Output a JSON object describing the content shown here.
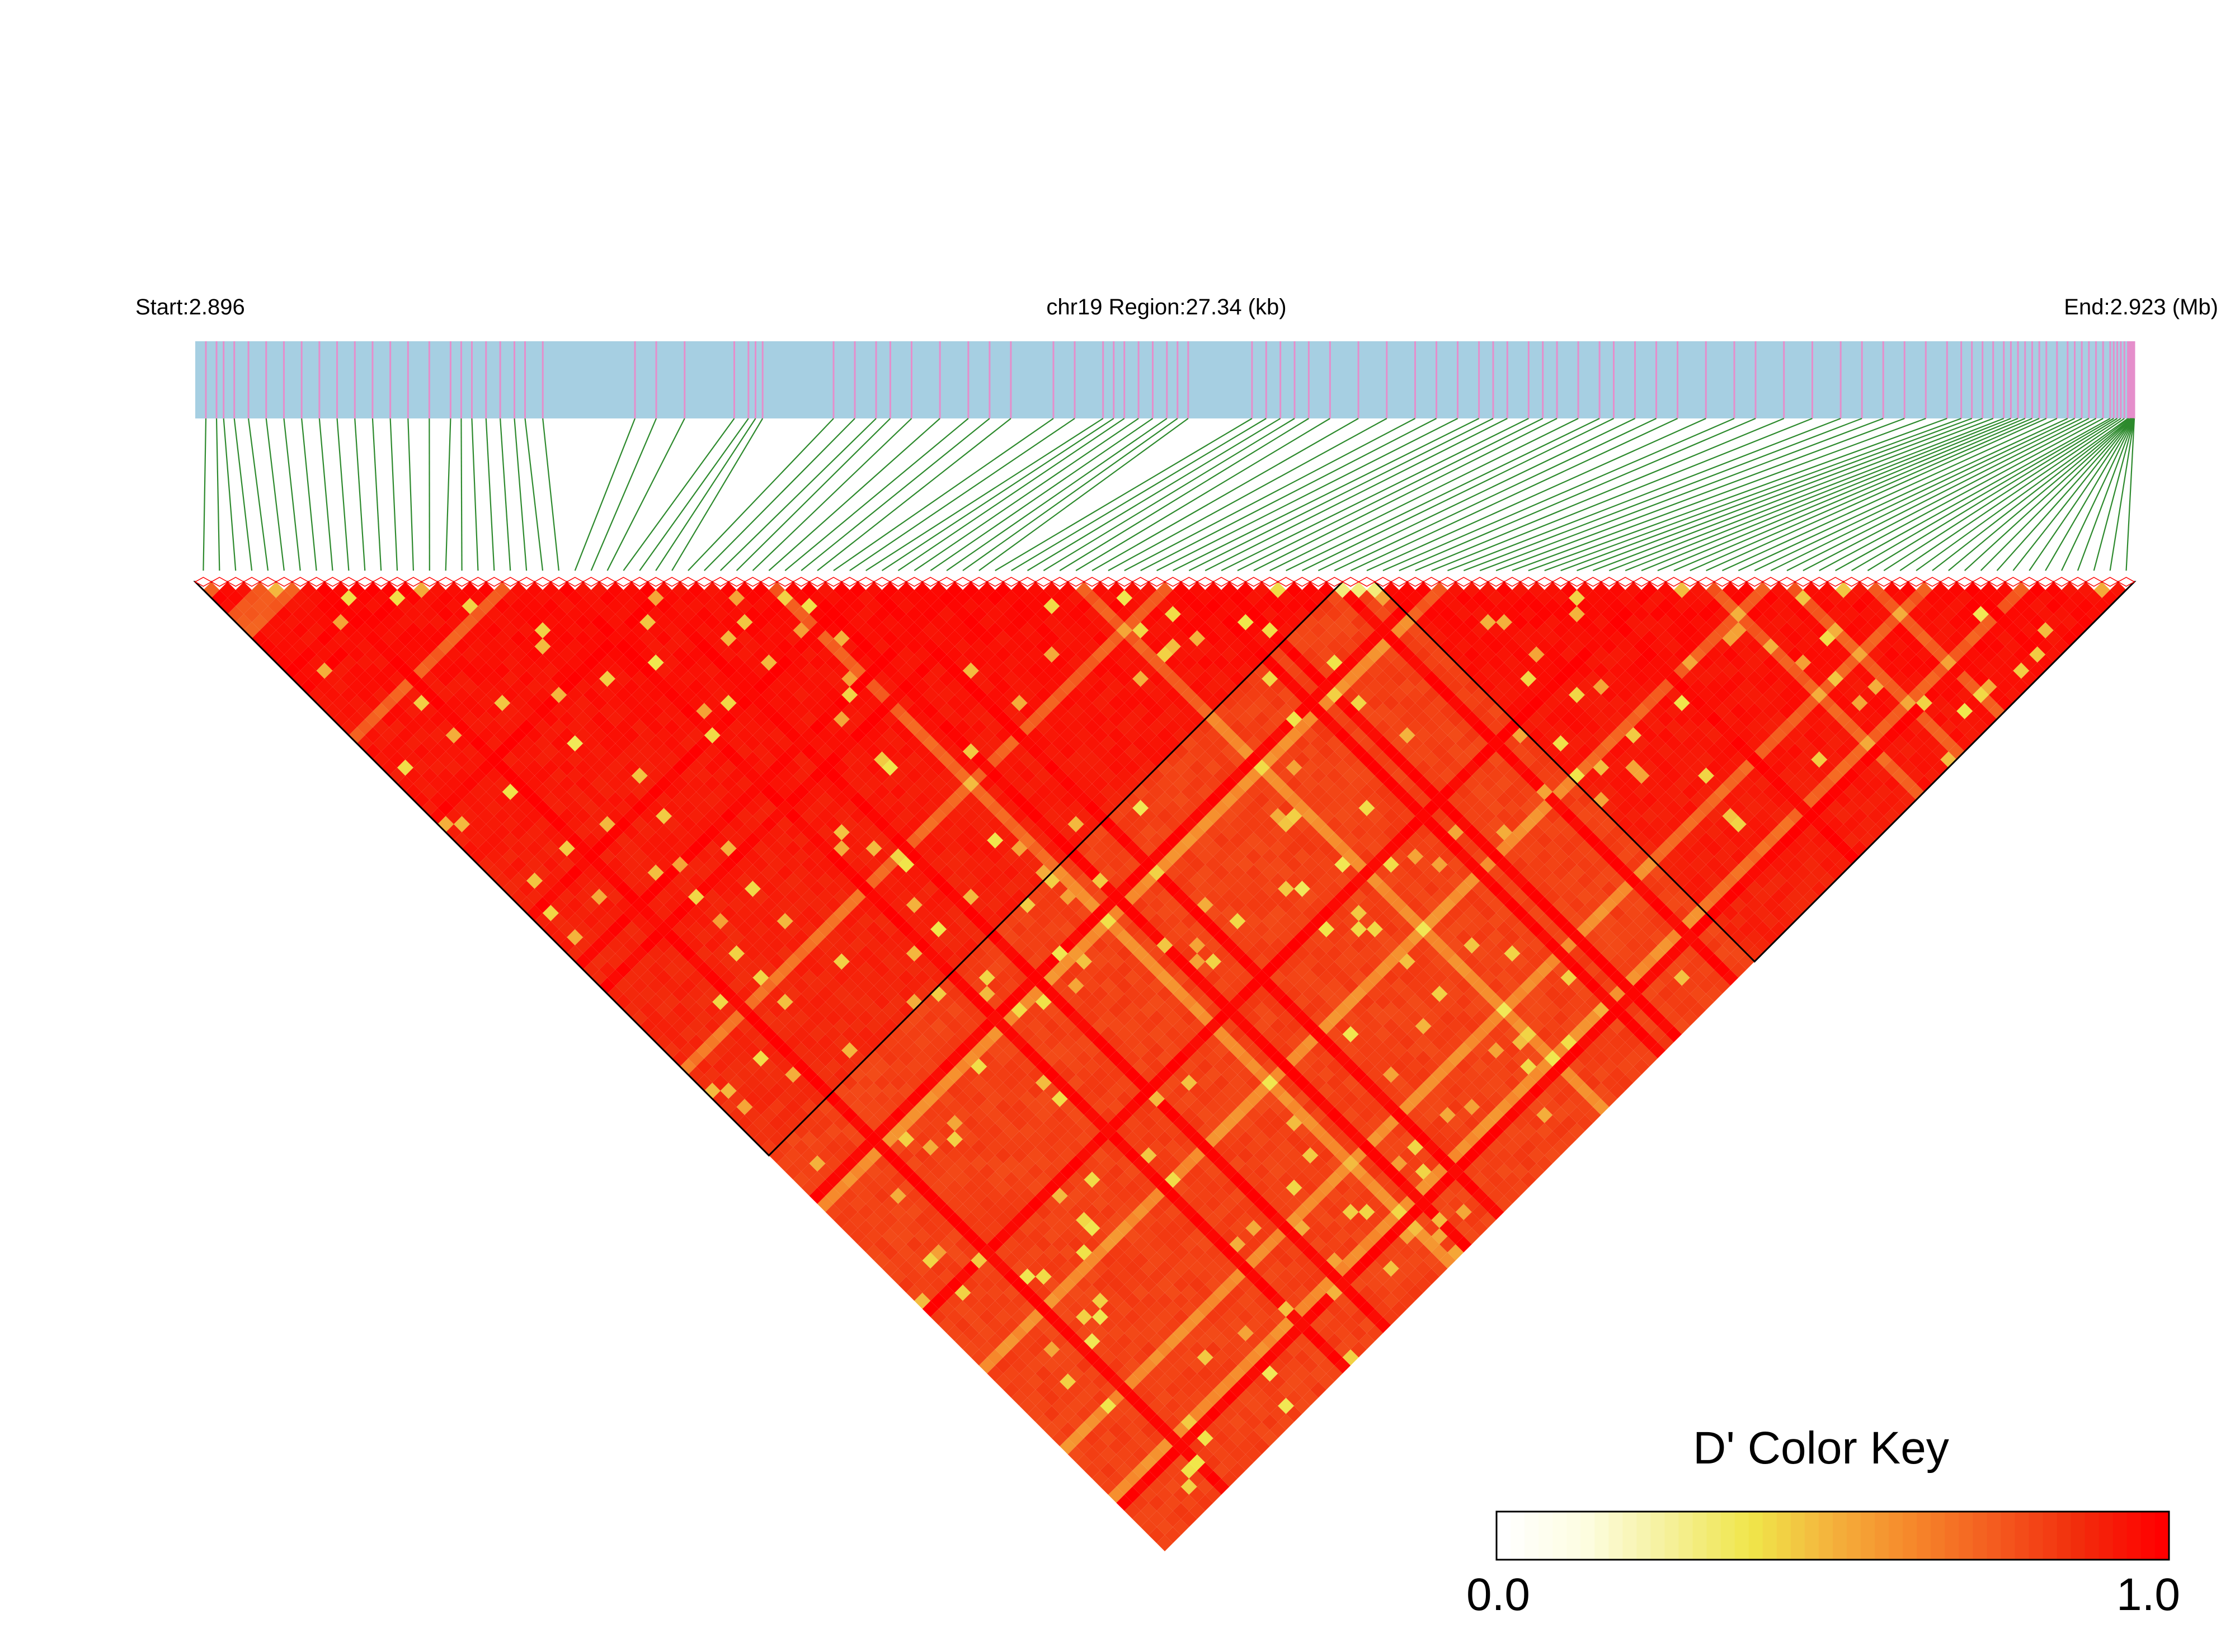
{
  "chart_data": {
    "type": "heatmap",
    "title": "",
    "region": {
      "start_label": "Start:2.896",
      "center_label": "chr19 Region:27.34 (kb)",
      "end_label": "End:2.923 (Mb)",
      "start_mb": 2.896,
      "end_mb": 2.923,
      "length_kb": 27.34
    },
    "snp_count": 120,
    "snp_positions_kb": [
      0.15,
      0.3,
      0.4,
      0.55,
      0.75,
      1.0,
      1.25,
      1.5,
      1.75,
      2.0,
      2.25,
      2.5,
      2.75,
      3.0,
      3.3,
      3.6,
      3.75,
      3.9,
      4.1,
      4.3,
      4.5,
      4.65,
      4.9,
      6.2,
      6.5,
      6.9,
      7.6,
      7.8,
      7.9,
      8.0,
      9.0,
      9.3,
      9.6,
      9.8,
      10.1,
      10.5,
      10.9,
      11.2,
      11.5,
      12.1,
      12.4,
      12.8,
      12.95,
      13.1,
      13.3,
      13.5,
      13.7,
      13.85,
      14.0,
      14.9,
      15.1,
      15.3,
      15.5,
      15.7,
      16.0,
      16.4,
      16.8,
      17.2,
      17.5,
      17.8,
      18.1,
      18.3,
      18.5,
      18.8,
      19.0,
      19.2,
      19.5,
      19.8,
      20.0,
      20.3,
      20.6,
      20.9,
      21.3,
      21.7,
      22.0,
      22.4,
      22.8,
      23.2,
      23.5,
      23.8,
      24.1,
      24.4,
      24.7,
      24.9,
      25.05,
      25.2,
      25.35,
      25.5,
      25.6,
      25.7,
      25.8,
      25.9,
      26.0,
      26.1,
      26.25,
      26.4,
      26.5,
      26.6,
      26.7,
      26.8,
      26.9,
      27.0,
      27.05,
      27.1,
      27.15,
      27.2,
      27.25,
      27.27,
      27.29,
      27.3,
      27.31,
      27.32,
      27.325,
      27.33,
      27.335,
      27.338,
      27.34,
      27.34,
      27.34,
      27.34
    ],
    "blocks": [
      {
        "first_snp": 1,
        "last_snp": 71
      },
      {
        "first_snp": 74,
        "last_snp": 120
      },
      {
        "first_snp": 36,
        "last_snp": 96
      }
    ],
    "color_key": {
      "title": "D' Color Key",
      "min_label": "0.0",
      "max_label": "1.0",
      "min": 0.0,
      "max": 1.0,
      "gradient_colors": [
        "#ffffff",
        "#fdfde0",
        "#f5f09a",
        "#f0e64a",
        "#f4b13c",
        "#f6862a",
        "#f45a1e",
        "#f22c0c",
        "#ff0000"
      ]
    },
    "colors": {
      "gene_track": "#a6cfe2",
      "snp_tick": "#e58ecb",
      "connector": "#2d8a2d",
      "block_outline": "#000000",
      "high_ld": "#ff0000",
      "mid_ld": "#f4521f",
      "low_ld": "#f5ea6a"
    }
  }
}
